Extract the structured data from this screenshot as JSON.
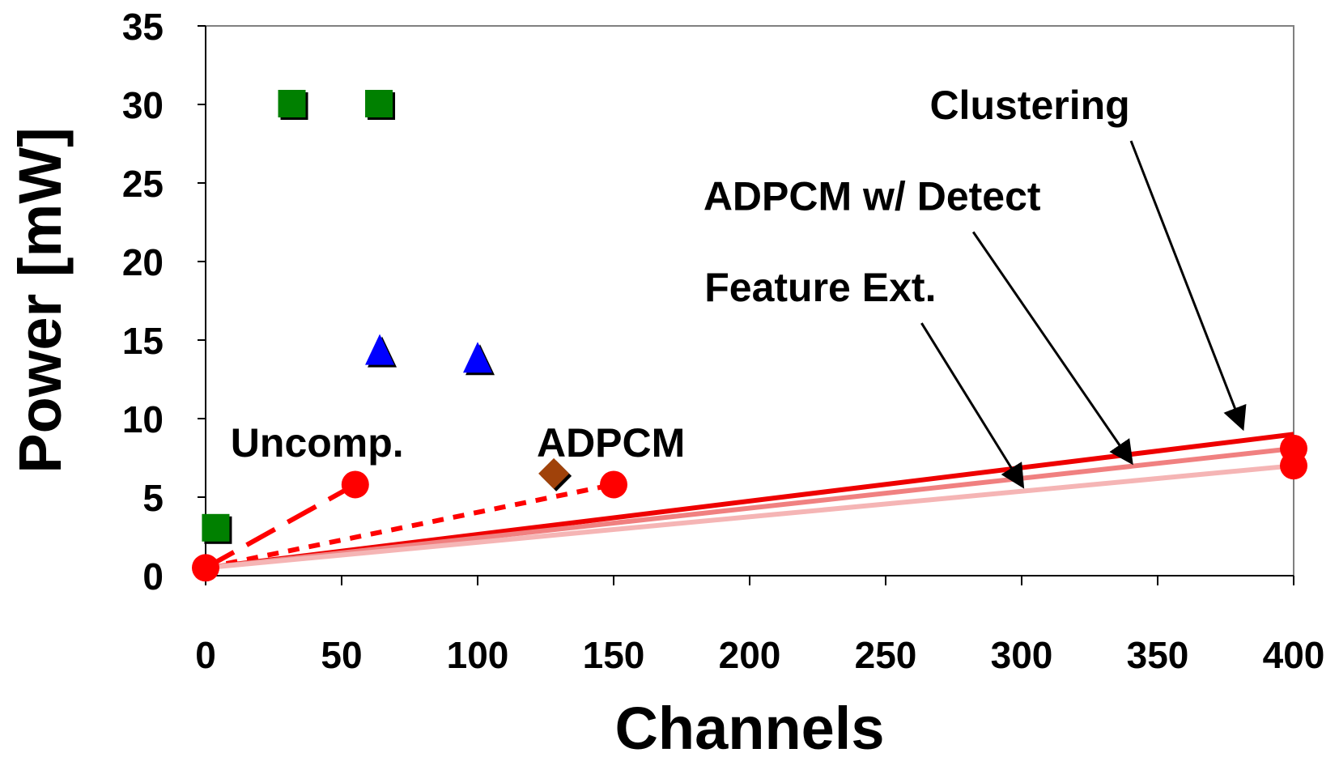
{
  "chart_data": {
    "type": "scatter",
    "xlabel": "Channels",
    "ylabel": "Power [mW]",
    "xlim": [
      0,
      400
    ],
    "ylim": [
      0,
      35
    ],
    "xticks": [
      0,
      50,
      100,
      150,
      200,
      250,
      300,
      350,
      400
    ],
    "yticks": [
      0,
      5,
      10,
      15,
      20,
      25,
      30,
      35
    ],
    "grid": false,
    "legend": "none",
    "lines": [
      {
        "style": "dashed",
        "color": "#ff0000",
        "x": [
          0,
          55
        ],
        "y": [
          0.5,
          5.8
        ]
      },
      {
        "style": "dotted",
        "color": "#ff0000",
        "x": [
          0,
          150
        ],
        "y": [
          0.5,
          5.8
        ]
      },
      {
        "style": "solid",
        "color": "#ee0000",
        "x": [
          0,
          400
        ],
        "y": [
          0.5,
          9.0
        ]
      },
      {
        "style": "solid",
        "color": "#f08080",
        "x": [
          0,
          400
        ],
        "y": [
          0.5,
          8.1
        ]
      },
      {
        "style": "solid",
        "color": "#f5b5b5",
        "x": [
          0,
          400
        ],
        "y": [
          0.5,
          7.0
        ]
      }
    ],
    "markers": [
      {
        "shape": "circle",
        "color": "#ff0000",
        "points": [
          [
            0,
            0.5
          ],
          [
            55,
            5.8
          ],
          [
            150,
            5.8
          ],
          [
            400,
            8.1
          ],
          [
            400,
            7.0
          ]
        ]
      },
      {
        "shape": "square",
        "color": "#008000",
        "points": [
          [
            4,
            3.0
          ],
          [
            32,
            30.0
          ],
          [
            64,
            30.0
          ]
        ]
      },
      {
        "shape": "triangle",
        "color": "#0000ff",
        "points": [
          [
            64,
            14.3
          ],
          [
            100,
            13.8
          ]
        ]
      },
      {
        "shape": "diamond",
        "color": "#a0420a",
        "points": [
          [
            128,
            6.5
          ]
        ]
      }
    ],
    "annotations": [
      {
        "text": "Clustering",
        "tx": 303,
        "ty": 30.0,
        "ax": 381,
        "ay": 9.5
      },
      {
        "text": "ADPCM w/ Detect",
        "tx": 245,
        "ty": 24.2,
        "ax": 340,
        "ay": 7.3
      },
      {
        "text": "Feature Ext.",
        "tx": 226,
        "ty": 18.4,
        "ax": 300,
        "ay": 5.8
      },
      {
        "text": "Uncomp.",
        "tx": 41,
        "ty": 8.5
      },
      {
        "text": "ADPCM",
        "tx": 149,
        "ty": 8.5
      }
    ]
  }
}
